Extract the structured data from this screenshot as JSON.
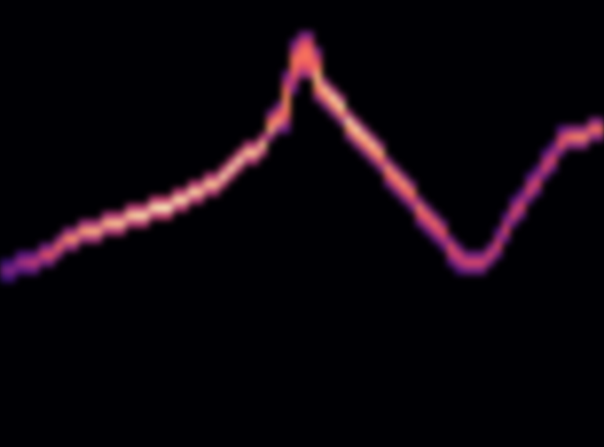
{
  "chart_data": {
    "type": "heatmap",
    "tick_labels": false,
    "xlim": [
      0,
      77
    ],
    "ylim": [
      0,
      57
    ],
    "color": "magma",
    "color_range": [
      0,
      1
    ],
    "cells": [
      [
        0,
        21,
        0.19
      ],
      [
        0,
        22,
        0.35
      ],
      [
        0,
        23,
        0.19
      ],
      [
        1,
        21,
        0.22
      ],
      [
        1,
        22,
        0.4
      ],
      [
        1,
        23,
        0.22
      ],
      [
        2,
        22,
        0.25
      ],
      [
        2,
        23,
        0.45
      ],
      [
        2,
        24,
        0.25
      ],
      [
        3,
        22,
        0.28
      ],
      [
        3,
        23,
        0.5
      ],
      [
        3,
        24,
        0.28
      ],
      [
        4,
        22,
        0.3
      ],
      [
        4,
        23,
        0.55
      ],
      [
        4,
        24,
        0.3
      ],
      [
        5,
        23,
        0.33
      ],
      [
        5,
        24,
        0.6
      ],
      [
        5,
        25,
        0.33
      ],
      [
        6,
        23,
        0.36
      ],
      [
        6,
        24,
        0.65
      ],
      [
        6,
        25,
        0.36
      ],
      [
        7,
        24,
        0.39
      ],
      [
        7,
        25,
        0.7
      ],
      [
        7,
        26,
        0.39
      ],
      [
        8,
        25,
        0.41
      ],
      [
        8,
        26,
        0.75
      ],
      [
        8,
        27,
        0.41
      ],
      [
        9,
        25,
        0.44
      ],
      [
        9,
        26,
        0.8
      ],
      [
        9,
        27,
        0.44
      ],
      [
        10,
        26,
        0.44
      ],
      [
        10,
        27,
        0.8
      ],
      [
        10,
        28,
        0.44
      ],
      [
        11,
        26,
        0.47
      ],
      [
        11,
        27,
        0.85
      ],
      [
        11,
        28,
        0.47
      ],
      [
        12,
        26,
        0.47
      ],
      [
        12,
        27,
        0.85
      ],
      [
        12,
        28,
        0.47
      ],
      [
        13,
        27,
        0.47
      ],
      [
        13,
        28,
        0.85
      ],
      [
        13,
        29,
        0.47
      ],
      [
        14,
        27,
        0.5
      ],
      [
        14,
        28,
        0.9
      ],
      [
        14,
        29,
        0.5
      ],
      [
        15,
        27,
        0.5
      ],
      [
        15,
        28,
        0.9
      ],
      [
        15,
        29,
        0.5
      ],
      [
        16,
        28,
        0.5
      ],
      [
        16,
        29,
        0.9
      ],
      [
        16,
        30,
        0.5
      ],
      [
        17,
        28,
        0.52
      ],
      [
        17,
        29,
        0.95
      ],
      [
        17,
        30,
        0.52
      ],
      [
        18,
        28,
        0.52
      ],
      [
        18,
        29,
        0.95
      ],
      [
        18,
        30,
        0.52
      ],
      [
        19,
        29,
        0.52
      ],
      [
        19,
        30,
        0.95
      ],
      [
        19,
        31,
        0.52
      ],
      [
        20,
        29,
        0.55
      ],
      [
        20,
        30,
        1
      ],
      [
        20,
        31,
        0.55
      ],
      [
        21,
        29,
        0.55
      ],
      [
        21,
        30,
        1
      ],
      [
        21,
        31,
        0.55
      ],
      [
        22,
        30,
        0.52
      ],
      [
        22,
        31,
        0.95
      ],
      [
        22,
        32,
        0.52
      ],
      [
        23,
        30,
        0.52
      ],
      [
        23,
        31,
        0.95
      ],
      [
        23,
        32,
        0.52
      ],
      [
        24,
        31,
        0.52
      ],
      [
        24,
        32,
        0.95
      ],
      [
        24,
        33,
        0.52
      ],
      [
        25,
        31,
        0.5
      ],
      [
        25,
        32,
        0.9
      ],
      [
        25,
        33,
        0.5
      ],
      [
        26,
        32,
        0.5
      ],
      [
        26,
        33,
        0.9
      ],
      [
        26,
        34,
        0.5
      ],
      [
        27,
        32,
        0.5
      ],
      [
        27,
        33,
        0.9
      ],
      [
        27,
        34,
        0.5
      ],
      [
        28,
        33,
        0.52
      ],
      [
        28,
        34,
        0.95
      ],
      [
        28,
        35,
        0.52
      ],
      [
        29,
        34,
        0.52
      ],
      [
        29,
        35,
        0.95
      ],
      [
        29,
        36,
        0.52
      ],
      [
        30,
        35,
        0.52
      ],
      [
        30,
        36,
        0.95
      ],
      [
        30,
        37,
        0.52
      ],
      [
        31,
        36,
        0.5
      ],
      [
        31,
        37,
        0.9
      ],
      [
        31,
        38,
        0.5
      ],
      [
        32,
        36,
        0.5
      ],
      [
        32,
        37,
        0.9
      ],
      [
        32,
        38,
        0.5
      ],
      [
        33,
        37,
        0.5
      ],
      [
        33,
        38,
        0.9
      ],
      [
        33,
        39,
        0.5
      ],
      [
        34,
        39,
        0.43
      ],
      [
        34,
        40,
        0.85
      ],
      [
        34,
        41,
        0.68
      ],
      [
        34,
        42,
        0.34
      ],
      [
        35,
        40,
        0.4
      ],
      [
        35,
        41,
        0.8
      ],
      [
        35,
        42,
        0.64
      ],
      [
        35,
        43,
        0.32
      ],
      [
        36,
        40,
        0.3
      ],
      [
        36,
        41,
        0.5
      ],
      [
        36,
        42,
        0.7
      ],
      [
        36,
        43,
        0.75
      ],
      [
        36,
        44,
        0.75
      ],
      [
        36,
        45,
        0.7
      ],
      [
        36,
        46,
        0.5
      ],
      [
        36,
        47,
        0.3
      ],
      [
        37,
        45,
        0.3
      ],
      [
        37,
        46,
        0.5
      ],
      [
        37,
        47,
        0.65
      ],
      [
        37,
        48,
        0.7
      ],
      [
        37,
        49,
        0.7
      ],
      [
        37,
        50,
        0.5
      ],
      [
        37,
        51,
        0.3
      ],
      [
        38,
        47,
        0.4
      ],
      [
        38,
        48,
        0.6
      ],
      [
        38,
        49,
        0.7
      ],
      [
        38,
        50,
        0.7
      ],
      [
        38,
        51,
        0.6
      ],
      [
        38,
        52,
        0.35
      ],
      [
        39,
        47,
        0.5
      ],
      [
        39,
        48,
        0.65
      ],
      [
        39,
        49,
        0.7
      ],
      [
        39,
        50,
        0.7
      ],
      [
        39,
        51,
        0.6
      ],
      [
        39,
        52,
        0.35
      ],
      [
        40,
        44,
        0.4
      ],
      [
        40,
        45,
        0.7
      ],
      [
        40,
        46,
        0.85
      ],
      [
        40,
        47,
        0.85
      ],
      [
        40,
        48,
        0.7
      ],
      [
        40,
        49,
        0.55
      ],
      [
        40,
        50,
        0.35
      ],
      [
        41,
        46,
        0.45
      ],
      [
        41,
        45,
        0.9
      ],
      [
        41,
        44,
        0.72
      ],
      [
        41,
        43,
        0.36
      ],
      [
        42,
        45,
        0.48
      ],
      [
        42,
        44,
        0.95
      ],
      [
        42,
        43,
        0.76
      ],
      [
        42,
        42,
        0.38
      ],
      [
        43,
        44,
        0.48
      ],
      [
        43,
        43,
        0.95
      ],
      [
        43,
        42,
        0.76
      ],
      [
        43,
        41,
        0.38
      ],
      [
        44,
        42,
        0.48
      ],
      [
        44,
        41,
        0.95
      ],
      [
        44,
        40,
        0.76
      ],
      [
        44,
        39,
        0.38
      ],
      [
        45,
        41,
        0.48
      ],
      [
        45,
        40,
        0.95
      ],
      [
        45,
        39,
        0.76
      ],
      [
        45,
        38,
        0.38
      ],
      [
        46,
        40,
        0.45
      ],
      [
        46,
        39,
        0.9
      ],
      [
        46,
        38,
        0.72
      ],
      [
        46,
        37,
        0.36
      ],
      [
        47,
        39,
        0.45
      ],
      [
        47,
        38,
        0.9
      ],
      [
        47,
        37,
        0.72
      ],
      [
        47,
        36,
        0.36
      ],
      [
        48,
        38,
        0.43
      ],
      [
        48,
        37,
        0.85
      ],
      [
        48,
        36,
        0.68
      ],
      [
        48,
        35,
        0.34
      ],
      [
        49,
        36,
        0.4
      ],
      [
        49,
        35,
        0.8
      ],
      [
        49,
        34,
        0.64
      ],
      [
        49,
        33,
        0.32
      ],
      [
        50,
        35,
        0.4
      ],
      [
        50,
        34,
        0.8
      ],
      [
        50,
        33,
        0.64
      ],
      [
        50,
        32,
        0.32
      ],
      [
        51,
        34,
        0.4
      ],
      [
        51,
        33,
        0.8
      ],
      [
        51,
        32,
        0.64
      ],
      [
        51,
        31,
        0.32
      ],
      [
        52,
        33,
        0.38
      ],
      [
        52,
        32,
        0.75
      ],
      [
        52,
        31,
        0.6
      ],
      [
        52,
        30,
        0.3
      ],
      [
        53,
        31,
        0.38
      ],
      [
        53,
        30,
        0.75
      ],
      [
        53,
        29,
        0.6
      ],
      [
        53,
        28,
        0.3
      ],
      [
        54,
        30,
        0.35
      ],
      [
        54,
        29,
        0.7
      ],
      [
        54,
        28,
        0.56
      ],
      [
        54,
        27,
        0.28
      ],
      [
        55,
        29,
        0.35
      ],
      [
        55,
        28,
        0.7
      ],
      [
        55,
        27,
        0.56
      ],
      [
        55,
        26,
        0.28
      ],
      [
        56,
        28,
        0.33
      ],
      [
        56,
        27,
        0.65
      ],
      [
        56,
        26,
        0.52
      ],
      [
        56,
        25,
        0.26
      ],
      [
        57,
        26,
        0.33
      ],
      [
        57,
        25,
        0.65
      ],
      [
        57,
        24,
        0.52
      ],
      [
        57,
        23,
        0.26
      ],
      [
        58,
        25,
        0.3
      ],
      [
        58,
        24,
        0.6
      ],
      [
        58,
        23,
        0.48
      ],
      [
        58,
        22,
        0.24
      ],
      [
        59,
        22,
        0.33
      ],
      [
        59,
        23,
        0.6
      ],
      [
        59,
        24,
        0.33
      ],
      [
        60,
        22,
        0.33
      ],
      [
        60,
        23,
        0.6
      ],
      [
        60,
        24,
        0.33
      ],
      [
        61,
        22,
        0.33
      ],
      [
        61,
        23,
        0.6
      ],
      [
        61,
        24,
        0.33
      ],
      [
        62,
        23,
        0.33
      ],
      [
        62,
        24,
        0.6
      ],
      [
        62,
        25,
        0.33
      ],
      [
        63,
        24,
        0.3
      ],
      [
        63,
        25,
        0.6
      ],
      [
        63,
        26,
        0.48
      ],
      [
        63,
        27,
        0.24
      ],
      [
        64,
        26,
        0.3
      ],
      [
        64,
        27,
        0.6
      ],
      [
        64,
        28,
        0.48
      ],
      [
        64,
        29,
        0.24
      ],
      [
        65,
        28,
        0.3
      ],
      [
        65,
        29,
        0.6
      ],
      [
        65,
        30,
        0.48
      ],
      [
        65,
        31,
        0.24
      ],
      [
        66,
        29,
        0.3
      ],
      [
        66,
        30,
        0.6
      ],
      [
        66,
        31,
        0.48
      ],
      [
        66,
        32,
        0.24
      ],
      [
        67,
        31,
        0.3
      ],
      [
        67,
        32,
        0.6
      ],
      [
        67,
        33,
        0.48
      ],
      [
        67,
        34,
        0.24
      ],
      [
        68,
        32,
        0.3
      ],
      [
        68,
        33,
        0.6
      ],
      [
        68,
        34,
        0.48
      ],
      [
        68,
        35,
        0.24
      ],
      [
        69,
        34,
        0.3
      ],
      [
        69,
        35,
        0.6
      ],
      [
        69,
        36,
        0.48
      ],
      [
        69,
        37,
        0.24
      ],
      [
        70,
        35,
        0.3
      ],
      [
        70,
        36,
        0.6
      ],
      [
        70,
        37,
        0.48
      ],
      [
        70,
        38,
        0.24
      ],
      [
        71,
        37,
        0.33
      ],
      [
        71,
        38,
        0.65
      ],
      [
        71,
        39,
        0.52
      ],
      [
        71,
        40,
        0.26
      ],
      [
        72,
        38,
        0.39
      ],
      [
        72,
        39,
        0.7
      ],
      [
        72,
        40,
        0.39
      ],
      [
        73,
        38,
        0.41
      ],
      [
        73,
        39,
        0.75
      ],
      [
        73,
        40,
        0.41
      ],
      [
        74,
        38,
        0.41
      ],
      [
        74,
        39,
        0.75
      ],
      [
        74,
        40,
        0.41
      ],
      [
        75,
        39,
        0.39
      ],
      [
        75,
        40,
        0.7
      ],
      [
        75,
        41,
        0.39
      ],
      [
        76,
        39,
        0.39
      ],
      [
        76,
        40,
        0.7
      ],
      [
        76,
        41,
        0.39
      ]
    ]
  }
}
